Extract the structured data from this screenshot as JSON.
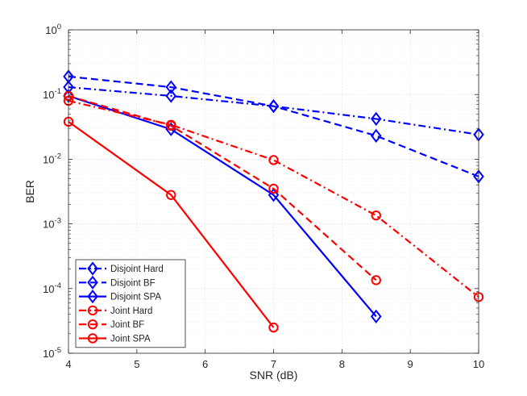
{
  "chart_data": {
    "type": "line",
    "title": "",
    "xlabel": "SNR (dB)",
    "ylabel": "BER",
    "xlim": [
      4,
      10
    ],
    "ylim": [
      1e-05,
      1
    ],
    "yscale": "log",
    "grid": true,
    "legend_position": "bottom-left",
    "x_ticks": [
      4,
      5,
      6,
      7,
      8,
      9,
      10
    ],
    "x_tick_labels": [
      "4",
      "5",
      "6",
      "7",
      "8",
      "9",
      "10"
    ],
    "y_ticks": [
      1e-05,
      0.0001,
      0.001,
      0.01,
      0.1,
      1
    ],
    "y_tick_labels": [
      {
        "base": "10",
        "exp": "-5"
      },
      {
        "base": "10",
        "exp": "-4"
      },
      {
        "base": "10",
        "exp": "-3"
      },
      {
        "base": "10",
        "exp": "-2"
      },
      {
        "base": "10",
        "exp": "-1"
      },
      {
        "base": "10",
        "exp": "0"
      }
    ],
    "series": [
      {
        "name": "Disjoint Hard",
        "color": "#0000ff",
        "marker": "diamond",
        "dash": "dashdot",
        "x": [
          4,
          5.5,
          7,
          8.5,
          10
        ],
        "y": [
          0.13,
          0.095,
          0.066,
          0.042,
          0.024
        ]
      },
      {
        "name": "Disjoint BF",
        "color": "#0000ff",
        "marker": "diamond",
        "dash": "dashed",
        "x": [
          4,
          5.5,
          7,
          8.5,
          10
        ],
        "y": [
          0.19,
          0.13,
          0.066,
          0.023,
          0.0054
        ]
      },
      {
        "name": "Disjoint SPA",
        "color": "#0000ff",
        "marker": "diamond",
        "dash": "solid",
        "x": [
          4,
          5.5,
          7,
          8.5
        ],
        "y": [
          0.095,
          0.029,
          0.0028,
          3.7e-05
        ]
      },
      {
        "name": "Joint Hard",
        "color": "#ff0000",
        "marker": "circle",
        "dash": "dashdot",
        "x": [
          4,
          5.5,
          7,
          8.5,
          10
        ],
        "y": [
          0.08,
          0.034,
          0.0097,
          0.00135,
          7.4e-05
        ]
      },
      {
        "name": "Joint BF",
        "color": "#ff0000",
        "marker": "circle",
        "dash": "dashed",
        "x": [
          4,
          5.5,
          7,
          8.5
        ],
        "y": [
          0.095,
          0.033,
          0.0035,
          0.000135
        ]
      },
      {
        "name": "Joint SPA",
        "color": "#ff0000",
        "marker": "circle",
        "dash": "solid",
        "x": [
          4,
          5.5,
          7
        ],
        "y": [
          0.038,
          0.0028,
          2.5e-05
        ]
      }
    ]
  }
}
